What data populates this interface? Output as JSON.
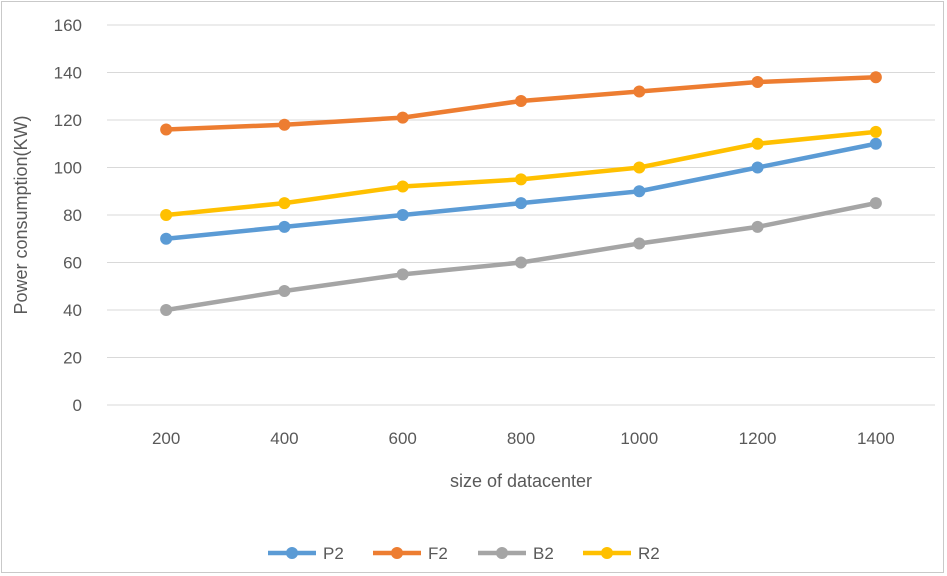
{
  "chart_data": {
    "type": "line",
    "title": "",
    "xlabel": "size of datacenter",
    "ylabel": "Power consumption(KW)",
    "categories": [
      "200",
      "400",
      "600",
      "800",
      "1000",
      "1200",
      "1400"
    ],
    "ylim": [
      0,
      160
    ],
    "yticks": [
      "0",
      "20",
      "40",
      "60",
      "80",
      "100",
      "120",
      "140",
      "160"
    ],
    "grid": true,
    "legend_position": "bottom",
    "series": [
      {
        "name": "P2",
        "color": "#5b9bd5",
        "values": [
          70,
          75,
          80,
          85,
          90,
          100,
          110
        ]
      },
      {
        "name": "F2",
        "color": "#ed7d31",
        "values": [
          116,
          118,
          121,
          128,
          132,
          136,
          138
        ]
      },
      {
        "name": "B2",
        "color": "#a5a5a5",
        "values": [
          40,
          48,
          55,
          60,
          68,
          75,
          85
        ]
      },
      {
        "name": "R2",
        "color": "#ffc000",
        "values": [
          80,
          85,
          92,
          95,
          100,
          110,
          115
        ]
      }
    ]
  }
}
